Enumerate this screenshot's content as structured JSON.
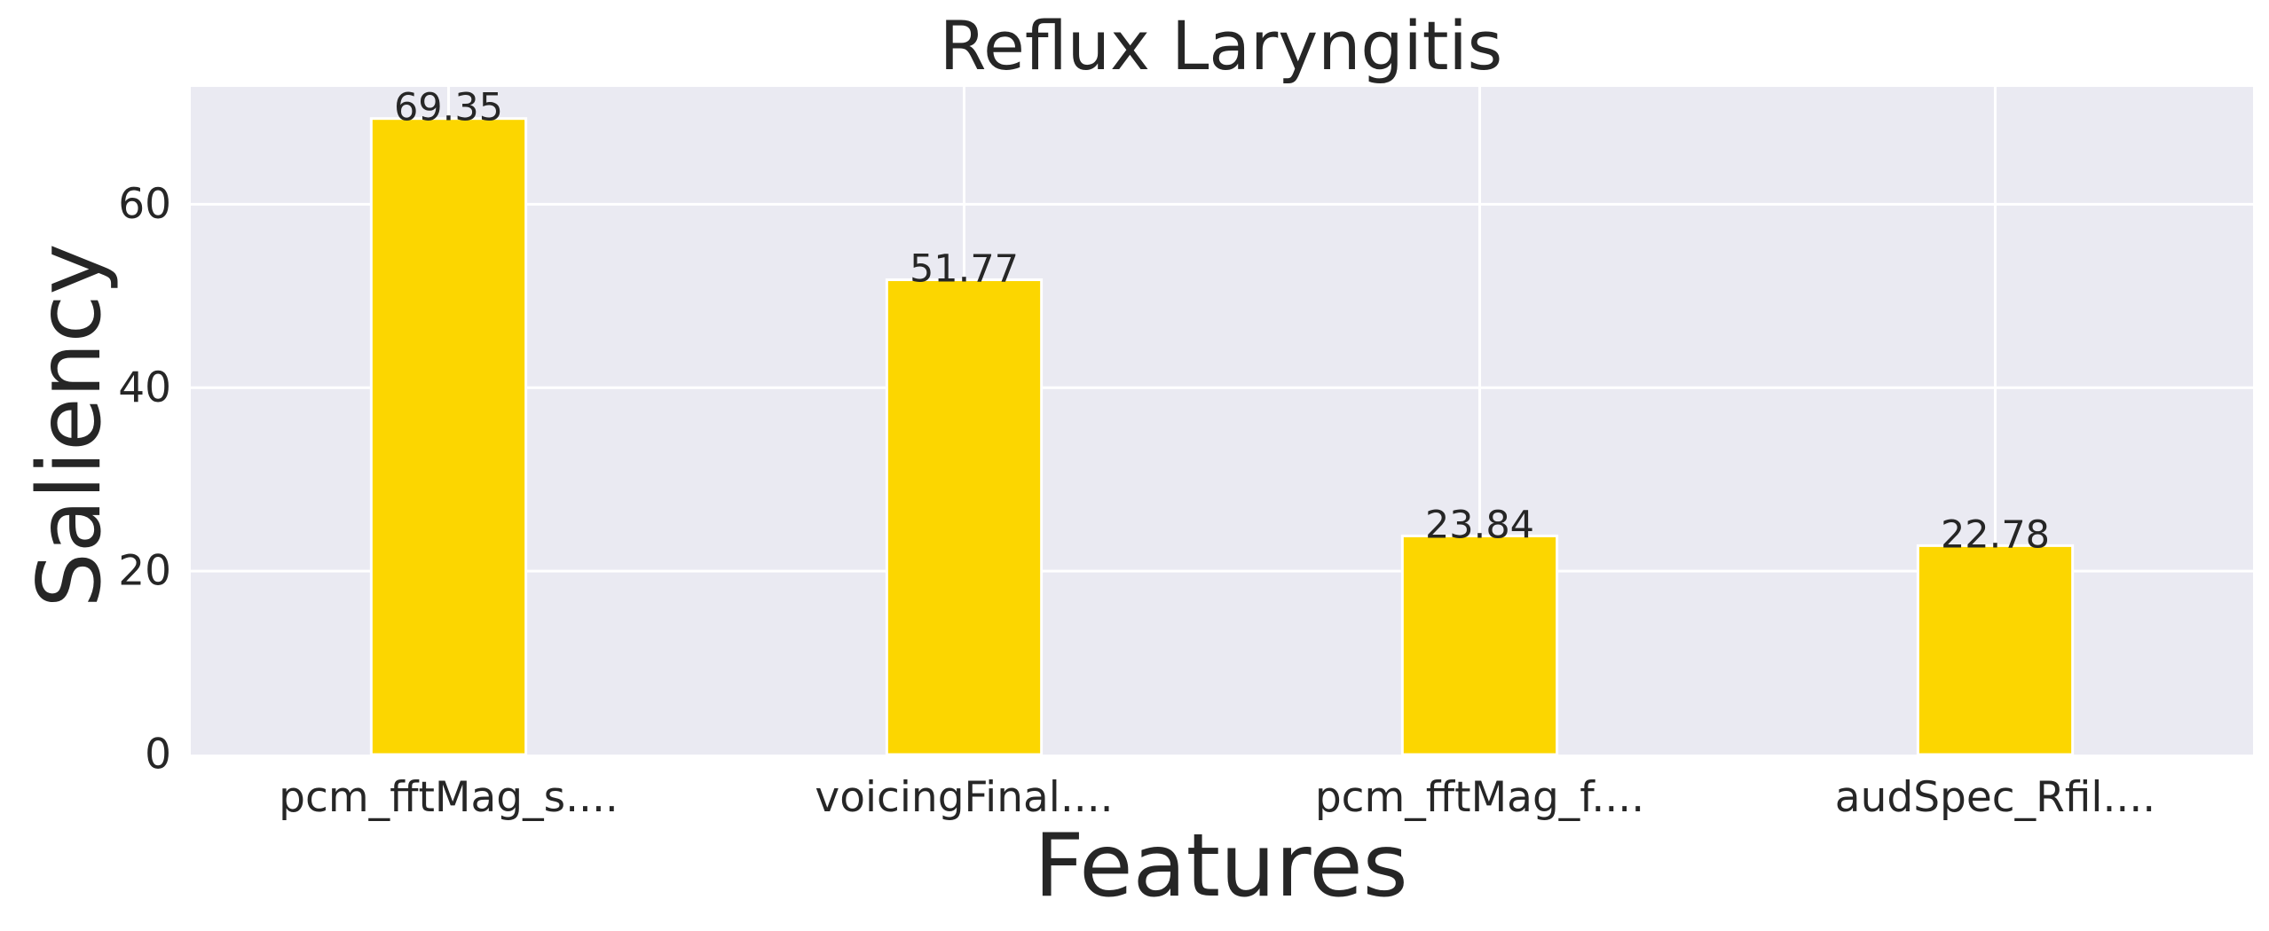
{
  "chart_data": {
    "type": "bar",
    "title": "Reflux Laryngitis",
    "xlabel": "Features",
    "ylabel": "Saliency",
    "categories": [
      "pcm_fftMag_s....",
      "voicingFinal....",
      "pcm_fftMag_f....",
      "audSpec_Rfil...."
    ],
    "values": [
      69.35,
      51.77,
      23.84,
      22.78
    ],
    "data_labels": [
      "69.35",
      "51.77",
      "23.84",
      "22.78"
    ],
    "yticks": [
      0,
      20,
      40,
      60
    ],
    "ytick_labels": [
      "0",
      "20",
      "40",
      "60"
    ],
    "ylim": [
      0,
      72.8
    ],
    "grid": true,
    "colors": {
      "bar": "#FCD600",
      "plot_background": "#EAEAF2",
      "grid": "#FFFFFF",
      "text": "#262626"
    }
  }
}
